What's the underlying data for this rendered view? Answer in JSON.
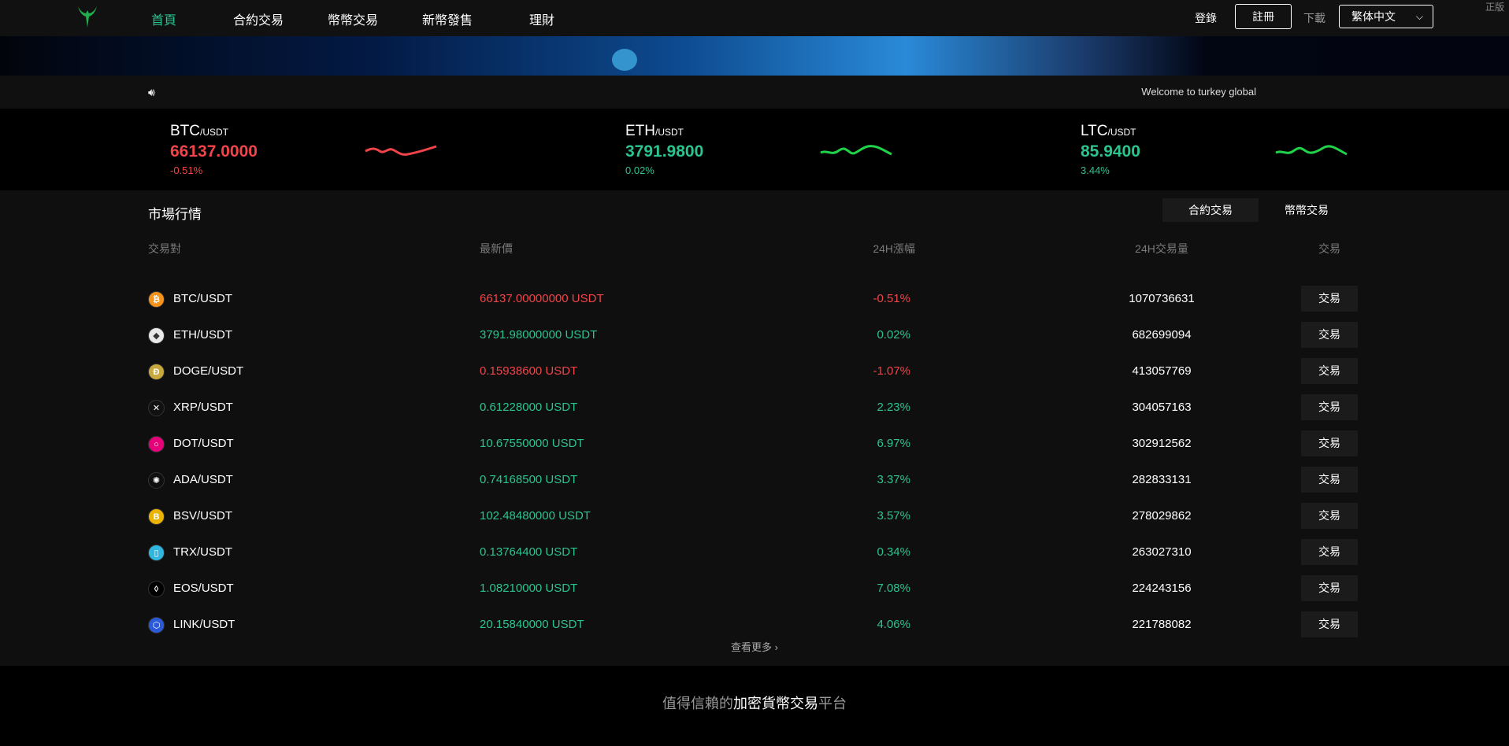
{
  "nav": {
    "items": [
      "首頁",
      "合約交易",
      "幣幣交易",
      "新幣發售",
      "理財"
    ],
    "active": 0,
    "login": "登錄",
    "register": "註冊",
    "download": "下載",
    "language": "繁体中文",
    "genuine": "正版"
  },
  "notice": {
    "text": "Welcome to turkey global"
  },
  "ticker": [
    {
      "base": "BTC",
      "quote": "/USDT",
      "price": "66137.0000",
      "change": "-0.51%",
      "trend": "down",
      "color": "#f0444a"
    },
    {
      "base": "ETH",
      "quote": "/USDT",
      "price": "3791.9800",
      "change": "0.02%",
      "trend": "up",
      "color": "#2bc48f"
    },
    {
      "base": "LTC",
      "quote": "/USDT",
      "price": "85.9400",
      "change": "3.44%",
      "trend": "up",
      "color": "#2bc48f"
    }
  ],
  "market": {
    "title": "市場行情",
    "tabs": [
      "合約交易",
      "幣幣交易"
    ],
    "active_tab": 0,
    "headers": {
      "pair": "交易對",
      "price": "最新價",
      "change": "24H漲幅",
      "volume": "24H交易量",
      "trade": "交易"
    },
    "rows": [
      {
        "pair": "BTC/USDT",
        "price": "66137.00000000 USDT",
        "change": "-0.51%",
        "volume": "1070736631",
        "up": false,
        "icon": "₿",
        "icon_bg": "#f7931a"
      },
      {
        "pair": "ETH/USDT",
        "price": "3791.98000000 USDT",
        "change": "0.02%",
        "volume": "682699094",
        "up": true,
        "icon": "◆",
        "icon_bg": "#e8e8e8"
      },
      {
        "pair": "DOGE/USDT",
        "price": "0.15938600 USDT",
        "change": "-1.07%",
        "volume": "413057769",
        "up": false,
        "icon": "Ð",
        "icon_bg": "#c9a93e"
      },
      {
        "pair": "XRP/USDT",
        "price": "0.61228000 USDT",
        "change": "2.23%",
        "volume": "304057163",
        "up": true,
        "icon": "✕",
        "icon_bg": "#111111"
      },
      {
        "pair": "DOT/USDT",
        "price": "10.67550000 USDT",
        "change": "6.97%",
        "volume": "302912562",
        "up": true,
        "icon": "○",
        "icon_bg": "#e6007a"
      },
      {
        "pair": "ADA/USDT",
        "price": "0.74168500 USDT",
        "change": "3.37%",
        "volume": "282833131",
        "up": true,
        "icon": "✺",
        "icon_bg": "#0f0f0f"
      },
      {
        "pair": "BSV/USDT",
        "price": "102.48480000 USDT",
        "change": "3.57%",
        "volume": "278029862",
        "up": true,
        "icon": "B",
        "icon_bg": "#eab300"
      },
      {
        "pair": "TRX/USDT",
        "price": "0.13764400 USDT",
        "change": "0.34%",
        "volume": "263027310",
        "up": true,
        "icon": "▯",
        "icon_bg": "#2fb7e0"
      },
      {
        "pair": "EOS/USDT",
        "price": "1.08210000 USDT",
        "change": "7.08%",
        "volume": "224243156",
        "up": true,
        "icon": "◊",
        "icon_bg": "#000000"
      },
      {
        "pair": "LINK/USDT",
        "price": "20.15840000 USDT",
        "change": "4.06%",
        "volume": "221788082",
        "up": true,
        "icon": "⬡",
        "icon_bg": "#2a5ada"
      }
    ],
    "trade_label": "交易",
    "more": "查看更多 ›"
  },
  "footer": {
    "slogan_pre": "值得信賴的",
    "slogan_mid": "加密貨幣交易",
    "slogan_post": "平台"
  },
  "colors": {
    "up": "#2bc48f",
    "down": "#f0444a",
    "active_nav": "#2bc48f"
  }
}
